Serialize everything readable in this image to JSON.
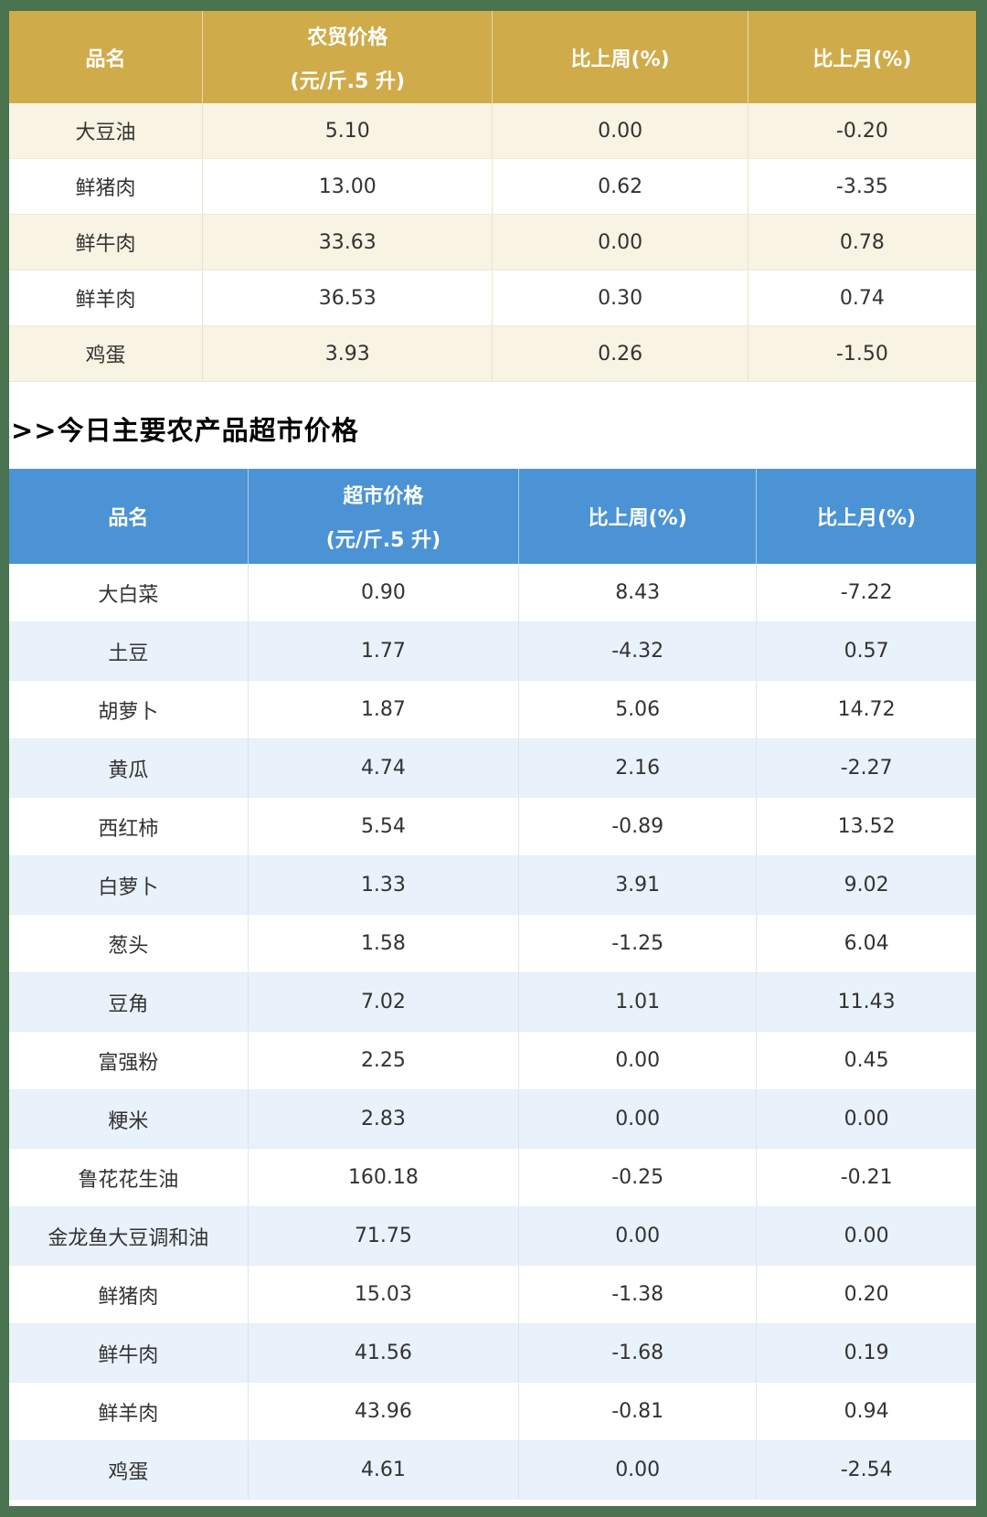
{
  "page": {
    "background_color": "#ffffff",
    "frame_color": "#4a7350"
  },
  "section_heading": ">>今日主要农产品超市价格",
  "farm_table": {
    "theme_color": "#cfab4a",
    "stripe_color": "#f8f3e3",
    "header_text_color": "#ffffff",
    "headers": [
      [
        "品名",
        ""
      ],
      [
        "农贸价格",
        "(元/斤.5 升)"
      ],
      [
        "比上周(%)",
        ""
      ],
      [
        "比上月(%)",
        ""
      ]
    ],
    "rows": [
      [
        "大豆油",
        "5.10",
        "0.00",
        "-0.20"
      ],
      [
        "鲜猪肉",
        "13.00",
        "0.62",
        "-3.35"
      ],
      [
        "鲜牛肉",
        "33.63",
        "0.00",
        "0.78"
      ],
      [
        "鲜羊肉",
        "36.53",
        "0.30",
        "0.74"
      ],
      [
        "鸡蛋",
        "3.93",
        "0.26",
        "-1.50"
      ]
    ]
  },
  "market_table": {
    "theme_color": "#4b93d5",
    "stripe_color": "#e9f1fa",
    "header_text_color": "#ffffff",
    "headers": [
      [
        "品名",
        ""
      ],
      [
        "超市价格",
        "(元/斤.5 升)"
      ],
      [
        "比上周(%)",
        ""
      ],
      [
        "比上月(%)",
        ""
      ]
    ],
    "rows": [
      [
        "大白菜",
        "0.90",
        "8.43",
        "-7.22"
      ],
      [
        "土豆",
        "1.77",
        "-4.32",
        "0.57"
      ],
      [
        "胡萝卜",
        "1.87",
        "5.06",
        "14.72"
      ],
      [
        "黄瓜",
        "4.74",
        "2.16",
        "-2.27"
      ],
      [
        "西红柿",
        "5.54",
        "-0.89",
        "13.52"
      ],
      [
        "白萝卜",
        "1.33",
        "3.91",
        "9.02"
      ],
      [
        "葱头",
        "1.58",
        "-1.25",
        "6.04"
      ],
      [
        "豆角",
        "7.02",
        "1.01",
        "11.43"
      ],
      [
        "富强粉",
        "2.25",
        "0.00",
        "0.45"
      ],
      [
        "粳米",
        "2.83",
        "0.00",
        "0.00"
      ],
      [
        "鲁花花生油",
        "160.18",
        "-0.25",
        "-0.21"
      ],
      [
        "金龙鱼大豆调和油",
        "71.75",
        "0.00",
        "0.00"
      ],
      [
        "鲜猪肉",
        "15.03",
        "-1.38",
        "0.20"
      ],
      [
        "鲜牛肉",
        "41.56",
        "-1.68",
        "0.19"
      ],
      [
        "鲜羊肉",
        "43.96",
        "-0.81",
        "0.94"
      ],
      [
        "鸡蛋",
        "4.61",
        "0.00",
        "-2.54"
      ]
    ]
  }
}
